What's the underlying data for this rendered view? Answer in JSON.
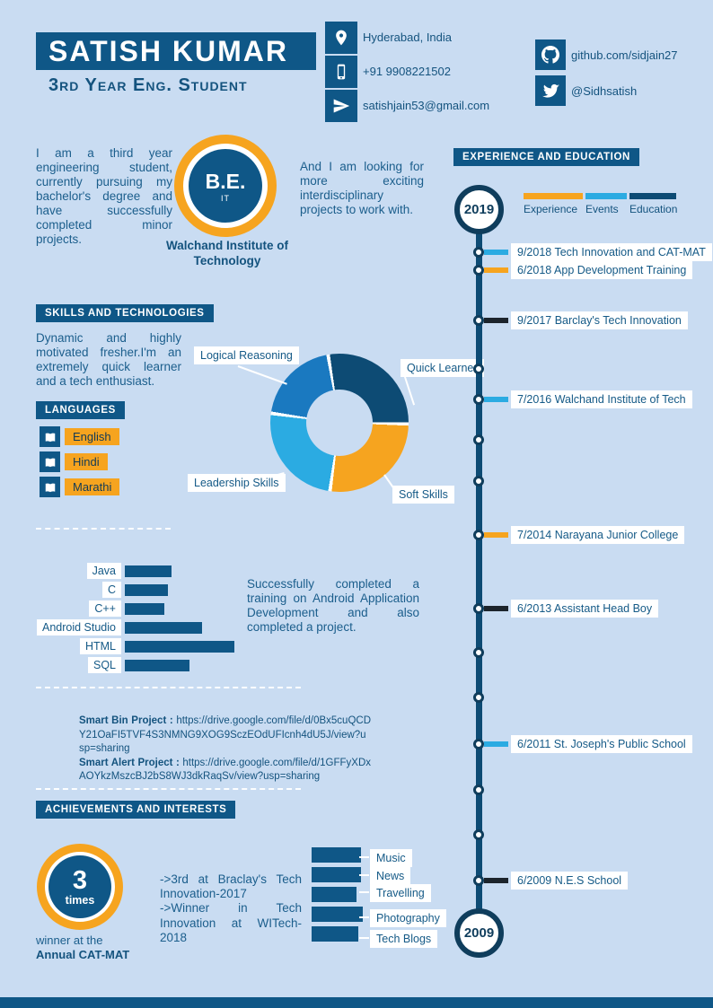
{
  "palette": {
    "background": "#c9dcf2",
    "primary_blue": "#0f5787",
    "dark_navy": "#0d4b74",
    "orange": "#f6a41f",
    "light_blue": "#2babe2",
    "mid_blue": "#1a79c0",
    "white": "#ffffff"
  },
  "header": {
    "name": "SATISH KUMAR",
    "subtitle": "3rd Year Eng. Student",
    "contacts": [
      {
        "icon": "location-pin-icon",
        "text": "Hyderabad, India"
      },
      {
        "icon": "phone-icon",
        "text": "+91 9908221502"
      },
      {
        "icon": "send-icon",
        "text": "satishjain53@gmail.com"
      }
    ],
    "social": [
      {
        "icon": "github-icon",
        "text": "github.com/sidjain27"
      },
      {
        "icon": "twitter-icon",
        "text": "@Sidhsatish"
      }
    ]
  },
  "about": {
    "intro": "I am a third year engineering student, currently pursuing my bachelor's degree and have successfully completed minor projects.",
    "degree": "B.E.",
    "degree_field": "IT",
    "institute": "Walchand Institute of Technology",
    "outlook": "And I am looking for more exciting interdisciplinary projects to work with."
  },
  "skills": {
    "header": "SKILLS AND TECHNOLOGIES",
    "text": "Dynamic and highly motivated fresher.I'm an extremely quick learner and a tech enthusiast."
  },
  "languages": {
    "header": "LANGUAGES",
    "items": [
      "English",
      "Hindi",
      "Marathi"
    ]
  },
  "training_note": "Successfully completed a training on Android Application Development and also completed a project.",
  "projects": {
    "separator": " : ",
    "items": [
      {
        "name": "Smart Bin Project",
        "url": "https://drive.google.com/file/d/0Bx5cuQCDY21OaFI5TVF4S3NMNG9XOG9SczEOdUFIcnh4dU5J/view?usp=sharing"
      },
      {
        "name": "Smart Alert Project",
        "url": "https://drive.google.com/file/d/1GFFyXDxAOYkzMszcBJ2bS8WJ3dkRaqSv/view?usp=sharing"
      }
    ]
  },
  "achievements": {
    "header": "ACHIEVEMENTS AND INTERESTS",
    "badge_value": "3",
    "badge_unit": "times",
    "caption_line1": "winner at the",
    "caption_line2": "Annual CAT-MAT",
    "items": [
      "->3rd at Braclay's Tech Innovation-2017",
      "->Winner in Tech Innovation at WITech-2018"
    ]
  },
  "timeline": {
    "header": "EXPERIENCE AND EDUCATION",
    "top_year": "2019",
    "bottom_year": "2009",
    "legend": [
      {
        "label": "Experience",
        "color": "#f6a41f"
      },
      {
        "label": "Events",
        "color": "#2babe2"
      },
      {
        "label": "Education",
        "color": "#0d4b74"
      }
    ],
    "events": [
      {
        "date": "9/2018",
        "title": "Tech Innovation and CAT-MAT",
        "color": "#2babe2"
      },
      {
        "date": "6/2018",
        "title": "App Development Training",
        "color": "#f6a41f"
      },
      {
        "date": "9/2017",
        "title": "Barclay's Tech Innovation",
        "color": "#1c242c"
      },
      {
        "date": "7/2016",
        "title": "Walchand Institute of Tech",
        "color": "#2babe2"
      },
      {
        "date": "7/2014",
        "title": "Narayana Junior College",
        "color": "#f6a41f"
      },
      {
        "date": "6/2013",
        "title": "Assistant Head Boy",
        "color": "#1c242c"
      },
      {
        "date": "6/2011",
        "title": "St. Joseph's Public School",
        "color": "#2babe2"
      },
      {
        "date": "6/2009",
        "title": "N.E.S School",
        "color": "#1c242c"
      }
    ]
  },
  "chart_data": [
    {
      "type": "pie",
      "name": "soft-skills-donut",
      "labels": [
        "Quick Learner",
        "Soft Skills",
        "Leadership Skills",
        "Logical Reasoning"
      ],
      "values": [
        28,
        27,
        25,
        20
      ],
      "colors": [
        "#0d4b74",
        "#f6a41f",
        "#2babe2",
        "#1a79c0"
      ],
      "donut_hole": true
    },
    {
      "type": "bar",
      "name": "technology-proficiency",
      "categories": [
        "Java",
        "C",
        "C++",
        "Android Studio",
        "HTML",
        "SQL"
      ],
      "values": [
        52,
        48,
        44,
        86,
        122,
        72
      ],
      "unit": "relative bar length",
      "color": "#0f5787"
    },
    {
      "type": "bar",
      "name": "interests",
      "categories": [
        "Music",
        "News",
        "Travelling",
        "Photography",
        "Tech Blogs"
      ],
      "values": [
        55,
        55,
        50,
        57,
        52
      ],
      "unit": "relative bar length",
      "color": "#0f5787"
    }
  ]
}
